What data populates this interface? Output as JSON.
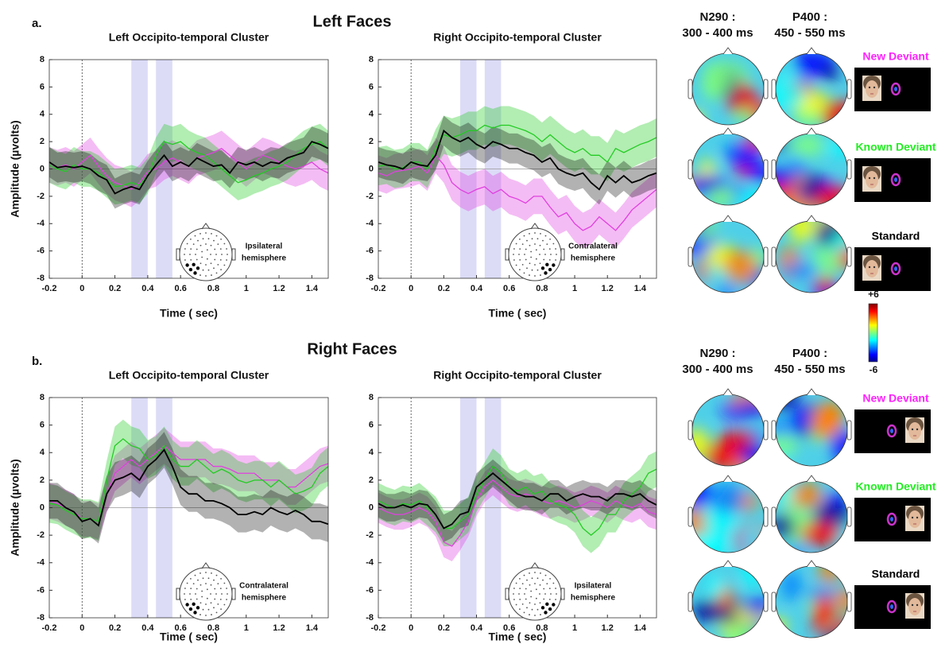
{
  "panel_labels": [
    "a.",
    "b."
  ],
  "group_titles": [
    "Left Faces",
    "Right Faces"
  ],
  "chart_data": [
    {
      "type": "line",
      "title": "Left Occipito-temporal Cluster",
      "xlabel": "Time ( sec)",
      "ylabel": "Amplitude (µvolts)",
      "x": [
        -0.2,
        -0.15,
        -0.1,
        -0.05,
        0,
        0.05,
        0.1,
        0.15,
        0.2,
        0.25,
        0.3,
        0.35,
        0.4,
        0.45,
        0.5,
        0.55,
        0.6,
        0.65,
        0.7,
        0.75,
        0.8,
        0.85,
        0.9,
        0.95,
        1,
        1.05,
        1.1,
        1.15,
        1.2,
        1.25,
        1.3,
        1.35,
        1.4,
        1.45,
        1.5
      ],
      "xlim": [
        -0.2,
        1.5
      ],
      "xticks": [
        -0.2,
        0,
        0.2,
        0.4,
        0.6,
        0.8,
        1,
        1.2,
        1.4
      ],
      "ylim": [
        -8,
        8
      ],
      "yticks": [
        -8,
        -6,
        -4,
        -2,
        0,
        2,
        4,
        6,
        8
      ],
      "spans": [
        [
          0.3,
          0.4
        ],
        [
          0.45,
          0.55
        ]
      ],
      "annotation": [
        "Ipsilateral",
        "hemisphere"
      ],
      "series": [
        {
          "color": "#e040e0",
          "error": 1.3,
          "values": [
            0.3,
            0.1,
            0.3,
            0,
            0.5,
            1.0,
            0.2,
            -0.5,
            -1.0,
            -1.2,
            -1.5,
            -1.0,
            -0.2,
            0,
            0.5,
            0.8,
            0.5,
            0.2,
            0.8,
            1.0,
            1.2,
            1.5,
            1.0,
            0.5,
            0,
            0.5,
            1.0,
            0.8,
            0.5,
            0.2,
            0,
            0.2,
            0.5,
            0,
            -0.3
          ]
        },
        {
          "color": "#22cc22",
          "error": 1.3,
          "values": [
            0.3,
            0,
            -0.2,
            0.3,
            0,
            0,
            -0.3,
            -0.8,
            -1.3,
            -1.2,
            -1.0,
            -1.2,
            -0.5,
            1.0,
            2.0,
            1.8,
            2.0,
            1.5,
            1.2,
            1.0,
            0.5,
            0,
            -0.5,
            -1.0,
            -0.8,
            -0.5,
            -0.3,
            0,
            0.2,
            0.5,
            1.0,
            1.5,
            1.8,
            2.0,
            1.5
          ]
        },
        {
          "color": "#000000",
          "error": 1.1,
          "values": [
            0.5,
            0.1,
            0.2,
            0.1,
            0.2,
            0,
            -0.5,
            -0.8,
            -1.8,
            -1.5,
            -1.3,
            -1.5,
            -0.5,
            0.3,
            1.0,
            0.2,
            0.5,
            0.2,
            0.8,
            0.5,
            0.2,
            0.3,
            -0.3,
            0.5,
            0.3,
            0.5,
            0.2,
            0.5,
            0.4,
            0.8,
            1.0,
            1.2,
            2.0,
            1.8,
            1.5
          ]
        }
      ]
    },
    {
      "type": "line",
      "title": "Right Occipito-temporal Cluster",
      "xlabel": "Time ( sec)",
      "x": [
        -0.2,
        -0.15,
        -0.1,
        -0.05,
        0,
        0.05,
        0.1,
        0.15,
        0.2,
        0.25,
        0.3,
        0.35,
        0.4,
        0.45,
        0.5,
        0.55,
        0.6,
        0.65,
        0.7,
        0.75,
        0.8,
        0.85,
        0.9,
        0.95,
        1,
        1.05,
        1.1,
        1.15,
        1.2,
        1.25,
        1.3,
        1.35,
        1.4,
        1.45,
        1.5
      ],
      "xlim": [
        -0.2,
        1.5
      ],
      "xticks": [
        -0.2,
        0,
        0.2,
        0.4,
        0.6,
        0.8,
        1,
        1.2,
        1.4
      ],
      "ylim": [
        -8,
        8
      ],
      "yticks": [
        -8,
        -6,
        -4,
        -2,
        0,
        2,
        4,
        6,
        8
      ],
      "spans": [
        [
          0.3,
          0.4
        ],
        [
          0.45,
          0.55
        ]
      ],
      "annotation": [
        "Contralateral",
        "hemisphere"
      ],
      "series": [
        {
          "color": "#e040e0",
          "error": 1.3,
          "values": [
            -0.3,
            -0.5,
            -0.2,
            -0.1,
            0,
            0.2,
            -0.3,
            1.0,
            0.3,
            -1.0,
            -1.5,
            -1.8,
            -1.5,
            -1.3,
            -1.8,
            -1.5,
            -2.0,
            -2.2,
            -2.5,
            -2.0,
            -2.0,
            -2.8,
            -3.5,
            -3.2,
            -4.0,
            -4.5,
            -4.2,
            -3.5,
            -4.0,
            -4.5,
            -3.8,
            -3.0,
            -2.5,
            -2.0,
            -1.5
          ]
        },
        {
          "color": "#22cc22",
          "error": 1.4,
          "values": [
            0.2,
            0.3,
            0,
            0.1,
            0.5,
            0.5,
            0,
            1.5,
            2.5,
            2.3,
            2.5,
            2.8,
            2.8,
            3.2,
            3.0,
            3.2,
            3.2,
            3.0,
            2.8,
            2.5,
            2.0,
            2.5,
            2.0,
            1.5,
            1.2,
            1.5,
            1.0,
            1.0,
            0.5,
            1.5,
            1.2,
            1.5,
            1.8,
            2.0,
            2.3
          ]
        },
        {
          "color": "#000000",
          "error": 1.1,
          "values": [
            0.5,
            0.3,
            0.2,
            0,
            0.5,
            0.3,
            0.2,
            1.0,
            2.8,
            2.3,
            2.0,
            2.3,
            1.8,
            1.5,
            2.0,
            1.8,
            1.5,
            1.5,
            1.2,
            1.0,
            0.5,
            0.8,
            0,
            -0.3,
            -0.5,
            -0.3,
            -1.0,
            -1.5,
            -0.5,
            -1.0,
            -0.5,
            -1.0,
            -0.8,
            -0.5,
            -0.3
          ]
        }
      ]
    },
    {
      "type": "line",
      "title": "Left Occipito-temporal Cluster",
      "xlabel": "Time ( sec)",
      "ylabel": "Amplitude (µvolts)",
      "x": [
        -0.2,
        -0.15,
        -0.1,
        -0.05,
        0,
        0.05,
        0.1,
        0.15,
        0.2,
        0.25,
        0.3,
        0.35,
        0.4,
        0.45,
        0.5,
        0.55,
        0.6,
        0.65,
        0.7,
        0.75,
        0.8,
        0.85,
        0.9,
        0.95,
        1,
        1.05,
        1.1,
        1.15,
        1.2,
        1.25,
        1.3,
        1.35,
        1.4,
        1.45,
        1.5
      ],
      "xlim": [
        -0.2,
        1.5
      ],
      "xticks": [
        -0.2,
        0,
        0.2,
        0.4,
        0.6,
        0.8,
        1,
        1.2,
        1.4
      ],
      "ylim": [
        -8,
        8
      ],
      "yticks": [
        -8,
        -6,
        -4,
        -2,
        0,
        2,
        4,
        6,
        8
      ],
      "spans": [
        [
          0.3,
          0.4
        ],
        [
          0.45,
          0.55
        ]
      ],
      "annotation": [
        "Contralateral",
        "hemisphere"
      ],
      "series": [
        {
          "color": "#e040e0",
          "error": 1.3,
          "values": [
            0.5,
            0.3,
            0,
            -0.3,
            -0.8,
            -0.8,
            -1.0,
            1.0,
            2.5,
            3.0,
            3.5,
            3.0,
            3.5,
            4.0,
            4.5,
            4.0,
            3.5,
            3.5,
            3.5,
            3.5,
            3.0,
            3.0,
            2.8,
            2.5,
            2.5,
            2.5,
            2.0,
            2.0,
            2.0,
            1.5,
            1.5,
            2.0,
            2.5,
            3.0,
            3.2
          ]
        },
        {
          "color": "#22cc22",
          "error": 1.4,
          "values": [
            0.3,
            0.2,
            -0.2,
            -0.5,
            -0.8,
            -0.8,
            -1.0,
            2.0,
            4.5,
            5.0,
            4.5,
            4.3,
            3.5,
            3.8,
            4.5,
            3.5,
            3.0,
            3.0,
            3.5,
            3.0,
            2.5,
            2.8,
            2.5,
            2.0,
            1.8,
            2.0,
            2.0,
            1.5,
            2.0,
            1.5,
            1.0,
            1.2,
            1.5,
            2.5,
            3.0
          ]
        },
        {
          "color": "#000000",
          "error": 1.3,
          "values": [
            0.5,
            0.5,
            0,
            -0.3,
            -1.0,
            -0.8,
            -1.3,
            1.0,
            2.0,
            2.2,
            2.5,
            2.0,
            3.0,
            3.5,
            4.2,
            3.0,
            1.5,
            1.0,
            1.0,
            0.5,
            0.5,
            0.3,
            0,
            -0.5,
            -0.5,
            -0.3,
            -0.5,
            0,
            -0.3,
            -0.5,
            -0.2,
            -0.5,
            -1.0,
            -1.0,
            -1.2
          ]
        }
      ]
    },
    {
      "type": "line",
      "title": "Right Occipito-temporal Cluster",
      "xlabel": "Time ( sec)",
      "x": [
        -0.2,
        -0.15,
        -0.1,
        -0.05,
        0,
        0.05,
        0.1,
        0.15,
        0.2,
        0.25,
        0.3,
        0.35,
        0.4,
        0.45,
        0.5,
        0.55,
        0.6,
        0.65,
        0.7,
        0.75,
        0.8,
        0.85,
        0.9,
        0.95,
        1,
        1.05,
        1.1,
        1.15,
        1.2,
        1.25,
        1.3,
        1.35,
        1.4,
        1.45,
        1.5
      ],
      "xlim": [
        -0.2,
        1.5
      ],
      "xticks": [
        -0.2,
        0,
        0.2,
        0.4,
        0.6,
        0.8,
        1,
        1.2,
        1.4
      ],
      "ylim": [
        -8,
        8
      ],
      "yticks": [
        -8,
        -6,
        -4,
        -2,
        0,
        2,
        4,
        6,
        8
      ],
      "spans": [
        [
          0.3,
          0.4
        ],
        [
          0.45,
          0.55
        ]
      ],
      "annotation": [
        "Ipsilateral",
        "hemisphere"
      ],
      "series": [
        {
          "color": "#e040e0",
          "error": 1.1,
          "values": [
            0,
            -0.3,
            -0.5,
            -0.5,
            -0.3,
            0,
            -0.3,
            -1.0,
            -2.5,
            -2.8,
            -2.0,
            -1.0,
            0.5,
            1.5,
            2.0,
            1.5,
            1.0,
            0.8,
            1.0,
            0.8,
            0.5,
            0.3,
            0.5,
            0.3,
            0,
            0.2,
            0.5,
            0.3,
            0,
            0.5,
            0.2,
            0,
            0.3,
            -0.3,
            -0.5
          ]
        },
        {
          "color": "#22cc22",
          "error": 1.3,
          "values": [
            0.5,
            0.2,
            0,
            0.3,
            0.2,
            0.5,
            0,
            -0.5,
            -1.5,
            -1.5,
            -1.0,
            -0.5,
            1.0,
            2.0,
            3.0,
            2.5,
            1.5,
            1.2,
            1.5,
            1.0,
            1.2,
            0.5,
            0.2,
            0,
            -0.5,
            -1.5,
            -2.0,
            -1.5,
            -0.5,
            -0.5,
            0.5,
            1.0,
            1.5,
            2.5,
            2.8
          ]
        },
        {
          "color": "#000000",
          "error": 1.0,
          "values": [
            0.3,
            0,
            0,
            0.2,
            0,
            0.3,
            0.2,
            -0.5,
            -1.5,
            -1.2,
            -0.5,
            -0.3,
            1.5,
            2.0,
            2.5,
            2.0,
            1.5,
            1.0,
            0.8,
            0.8,
            0.5,
            1.0,
            1.0,
            0.5,
            0.8,
            1.0,
            0.8,
            0.8,
            0.5,
            1.0,
            1.0,
            0.8,
            1.0,
            0.5,
            0.2
          ]
        }
      ]
    }
  ],
  "topo_panels": [
    {
      "headers": [
        {
          "component": "N290 :",
          "window": "300 - 400 ms"
        },
        {
          "component": "P400 :",
          "window": "450 - 550 ms"
        }
      ],
      "conditions": [
        {
          "label": "New Deviant",
          "color": "#ff22ff"
        },
        {
          "label": "Known Deviant",
          "color": "#22ee22"
        },
        {
          "label": "Standard",
          "color": "#000000"
        }
      ]
    },
    {
      "headers": [
        {
          "component": "N290 :",
          "window": "300 - 400 ms"
        },
        {
          "component": "P400 :",
          "window": "450 - 550 ms"
        }
      ],
      "conditions": [
        {
          "label": "New Deviant",
          "color": "#ff22ff"
        },
        {
          "label": "Known Deviant",
          "color": "#22ee22"
        },
        {
          "label": "Standard",
          "color": "#000000"
        }
      ]
    }
  ],
  "colorbar": {
    "lim": [
      -6,
      6
    ],
    "ticks": [
      {
        "value": 6,
        "label": "+6"
      },
      -6
    ]
  }
}
